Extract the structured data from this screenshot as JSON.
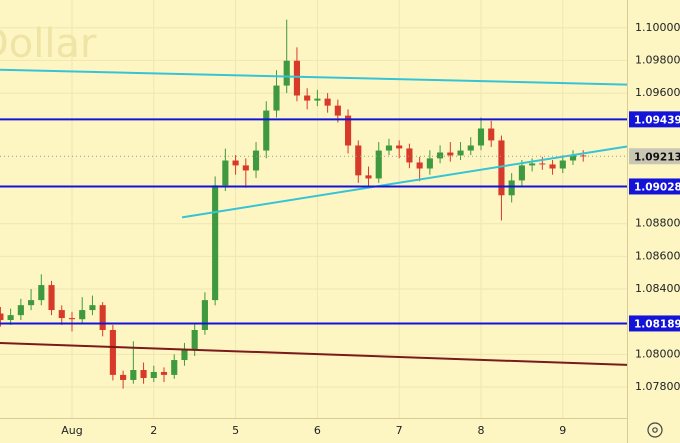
{
  "chart_data": {
    "type": "candlestick",
    "watermark": "Dollar",
    "background": "#fdf6c3",
    "grid": true,
    "grid_color": "#efe6b0",
    "up_color": "#3f9a3f",
    "down_color": "#d83a2a",
    "xlim": [
      -0.88,
      6.785
    ],
    "ylim": [
      1.0761,
      1.1017
    ],
    "xticks": [
      {
        "value": 0,
        "label": "Aug"
      },
      {
        "value": 1,
        "label": "2"
      },
      {
        "value": 2,
        "label": "5"
      },
      {
        "value": 3,
        "label": "6"
      },
      {
        "value": 4,
        "label": "7"
      },
      {
        "value": 5,
        "label": "8"
      },
      {
        "value": 6,
        "label": "9"
      }
    ],
    "yticks": [
      {
        "value": 1.1,
        "label": "1.10000"
      },
      {
        "value": 1.098,
        "label": "1.09800"
      },
      {
        "value": 1.096,
        "label": "1.09600"
      },
      {
        "value": 1.088,
        "label": "1.08800"
      },
      {
        "value": 1.086,
        "label": "1.08600"
      },
      {
        "value": 1.084,
        "label": "1.08400"
      },
      {
        "value": 1.08,
        "label": "1.08000"
      },
      {
        "value": 1.078,
        "label": "1.07800"
      }
    ],
    "x": [
      -0.875,
      -0.75,
      -0.625,
      -0.5,
      -0.375,
      -0.25,
      -0.125,
      0,
      0.125,
      0.25,
      0.375,
      0.5,
      0.625,
      0.75,
      0.875,
      1,
      1.125,
      1.25,
      1.375,
      1.5,
      1.625,
      1.75,
      1.875,
      2,
      2.125,
      2.25,
      2.375,
      2.5,
      2.625,
      2.75,
      2.875,
      3,
      3.125,
      3.25,
      3.375,
      3.5,
      3.625,
      3.75,
      3.875,
      4,
      4.125,
      4.25,
      4.375,
      4.5,
      4.625,
      4.75,
      4.875,
      5,
      5.125,
      5.25,
      5.375,
      5.5,
      5.625,
      5.75,
      5.875,
      6,
      6.125,
      6.25
    ],
    "open": [
      1.0825,
      1.0821,
      1.0824,
      1.08301,
      1.08332,
      1.08424,
      1.08271,
      1.08222,
      1.08215,
      1.08271,
      1.08301,
      1.08149,
      1.07874,
      1.07843,
      1.07904,
      1.07855,
      1.07892,
      1.07874,
      1.07965,
      1.08026,
      1.08149,
      1.08332,
      1.09035,
      1.09187,
      1.09157,
      1.09126,
      1.09248,
      1.09493,
      1.09646,
      1.09798,
      1.09585,
      1.09554,
      1.09566,
      1.09523,
      1.09462,
      1.09279,
      1.09096,
      1.09077,
      1.09248,
      1.09279,
      1.09261,
      1.09175,
      1.09138,
      1.092,
      1.09236,
      1.09218,
      1.09248,
      1.09279,
      1.09383,
      1.0931,
      1.08974,
      1.09065,
      1.09157,
      1.09169,
      1.09163,
      1.09138,
      1.09187,
      1.09218
    ],
    "high": [
      1.0829,
      1.0828,
      1.0834,
      1.084,
      1.0849,
      1.0845,
      1.083,
      1.0826,
      1.0835,
      1.0836,
      1.0832,
      1.0818,
      1.079,
      1.0808,
      1.0795,
      1.0793,
      1.0792,
      1.08,
      1.0807,
      1.0819,
      1.0838,
      1.0909,
      1.0926,
      1.0922,
      1.092,
      1.093,
      1.0955,
      1.0974,
      1.1005,
      1.0988,
      1.0963,
      1.0962,
      1.096,
      1.0956,
      1.095,
      1.0931,
      1.0915,
      1.093,
      1.0932,
      1.0931,
      1.0929,
      1.0921,
      1.0925,
      1.0928,
      1.093,
      1.093,
      1.0933,
      1.0945,
      1.0943,
      1.0934,
      1.0911,
      1.0919,
      1.092,
      1.0921,
      1.0919,
      1.0922,
      1.0925,
      1.0925
    ],
    "low": [
      1.0817,
      1.0818,
      1.0821,
      1.0827,
      1.083,
      1.0824,
      1.0818,
      1.0814,
      1.0819,
      1.0824,
      1.0811,
      1.0784,
      1.0779,
      1.0782,
      1.0782,
      1.0783,
      1.0783,
      1.0785,
      1.0793,
      1.0799,
      1.0812,
      1.083,
      1.09,
      1.091,
      1.0902,
      1.0908,
      1.092,
      1.0945,
      1.096,
      1.0955,
      1.095,
      1.0952,
      1.0948,
      1.0942,
      1.0923,
      1.0905,
      1.0903,
      1.0905,
      1.0922,
      1.092,
      1.0914,
      1.0906,
      1.091,
      1.0917,
      1.0918,
      1.0919,
      1.0922,
      1.0925,
      1.0927,
      1.0882,
      1.0893,
      1.0903,
      1.0912,
      1.0913,
      1.091,
      1.0911,
      1.0916,
      1.0918
    ],
    "close": [
      1.0821,
      1.0824,
      1.08301,
      1.08332,
      1.08424,
      1.08271,
      1.08222,
      1.08215,
      1.08271,
      1.08301,
      1.08149,
      1.07874,
      1.07843,
      1.07904,
      1.07855,
      1.07892,
      1.07874,
      1.07965,
      1.08026,
      1.08149,
      1.08332,
      1.09035,
      1.09187,
      1.09157,
      1.09126,
      1.09248,
      1.09493,
      1.09646,
      1.09798,
      1.09585,
      1.09554,
      1.09566,
      1.09523,
      1.09462,
      1.09279,
      1.09096,
      1.09077,
      1.09248,
      1.09279,
      1.09261,
      1.09175,
      1.09138,
      1.092,
      1.09236,
      1.09218,
      1.09248,
      1.09279,
      1.09383,
      1.0931,
      1.08974,
      1.09065,
      1.09157,
      1.09169,
      1.09163,
      1.09138,
      1.09187,
      1.09218,
      1.09213
    ],
    "levels": [
      {
        "value": 1.09439,
        "label": "1.09439"
      },
      {
        "value": 1.09028,
        "label": "1.09028"
      },
      {
        "value": 1.08189,
        "label": "1.08189"
      }
    ],
    "level_color": "#1414d8",
    "last_price": {
      "value": 1.09213,
      "label": "1.09213"
    },
    "trend_lines": [
      {
        "color": "#35c4d6",
        "points": [
          [
            -0.88,
            1.09743
          ],
          [
            6.785,
            1.09652
          ]
        ]
      },
      {
        "color": "#35c4d6",
        "points": [
          [
            1.345,
            1.08839
          ],
          [
            6.785,
            1.09273
          ]
        ]
      },
      {
        "color": "#7a1a1a",
        "points": [
          [
            -0.88,
            1.08069
          ],
          [
            6.785,
            1.07935
          ]
        ]
      }
    ]
  }
}
